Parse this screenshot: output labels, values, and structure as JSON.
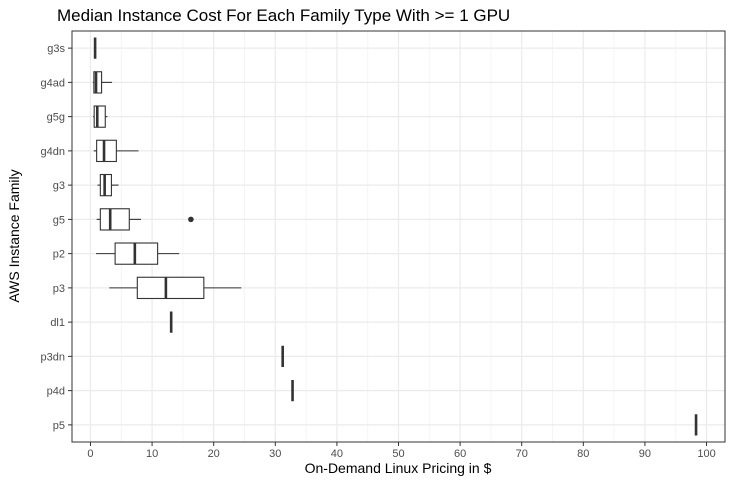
{
  "chart_data": {
    "type": "boxplot",
    "orientation": "horizontal",
    "title": "Median Instance Cost For Each Family Type With >= 1 GPU",
    "xlabel": "On-Demand Linux Pricing in $",
    "ylabel": "AWS Instance Family",
    "xlim": [
      -3,
      103
    ],
    "x_ticks": [
      0,
      10,
      20,
      30,
      40,
      50,
      60,
      70,
      80,
      90,
      100
    ],
    "grid": true,
    "categories": [
      "g3s",
      "g4ad",
      "g5g",
      "g4dn",
      "g3",
      "g5",
      "p2",
      "p3",
      "dl1",
      "p3dn",
      "p4d",
      "p5"
    ],
    "boxes": [
      {
        "category": "g3s",
        "min": 0.75,
        "q1": 0.75,
        "median": 0.75,
        "q3": 0.75,
        "max": 0.75,
        "outliers": []
      },
      {
        "category": "g4ad",
        "min": 0.38,
        "q1": 0.55,
        "median": 0.9,
        "q3": 1.8,
        "max": 3.5,
        "outliers": []
      },
      {
        "category": "g5g",
        "min": 0.42,
        "q1": 0.6,
        "median": 1.1,
        "q3": 2.4,
        "max": 2.75,
        "outliers": []
      },
      {
        "category": "g4dn",
        "min": 0.53,
        "q1": 1.0,
        "median": 2.2,
        "q3": 4.2,
        "max": 7.8,
        "outliers": []
      },
      {
        "category": "g3",
        "min": 1.14,
        "q1": 1.6,
        "median": 2.3,
        "q3": 3.4,
        "max": 4.56,
        "outliers": []
      },
      {
        "category": "g5",
        "min": 1.0,
        "q1": 1.6,
        "median": 3.2,
        "q3": 6.3,
        "max": 8.2,
        "outliers": [
          16.3
        ]
      },
      {
        "category": "p2",
        "min": 0.9,
        "q1": 4.0,
        "median": 7.2,
        "q3": 10.9,
        "max": 14.4,
        "outliers": []
      },
      {
        "category": "p3",
        "min": 3.06,
        "q1": 7.6,
        "median": 12.24,
        "q3": 18.4,
        "max": 24.48,
        "outliers": []
      },
      {
        "category": "dl1",
        "min": 13.1,
        "q1": 13.1,
        "median": 13.1,
        "q3": 13.1,
        "max": 13.1,
        "outliers": []
      },
      {
        "category": "p3dn",
        "min": 31.2,
        "q1": 31.2,
        "median": 31.2,
        "q3": 31.2,
        "max": 31.2,
        "outliers": []
      },
      {
        "category": "p4d",
        "min": 32.8,
        "q1": 32.8,
        "median": 32.8,
        "q3": 32.8,
        "max": 32.8,
        "outliers": []
      },
      {
        "category": "p5",
        "min": 98.3,
        "q1": 98.3,
        "median": 98.3,
        "q3": 98.3,
        "max": 98.3,
        "outliers": []
      }
    ],
    "colors": {
      "panel_border": "#333333",
      "grid_major": "#ebebeb",
      "grid_minor": "#f5f5f5",
      "box_stroke": "#333333",
      "box_fill": "#ffffff",
      "tick_text": "#4d4d4d"
    }
  }
}
